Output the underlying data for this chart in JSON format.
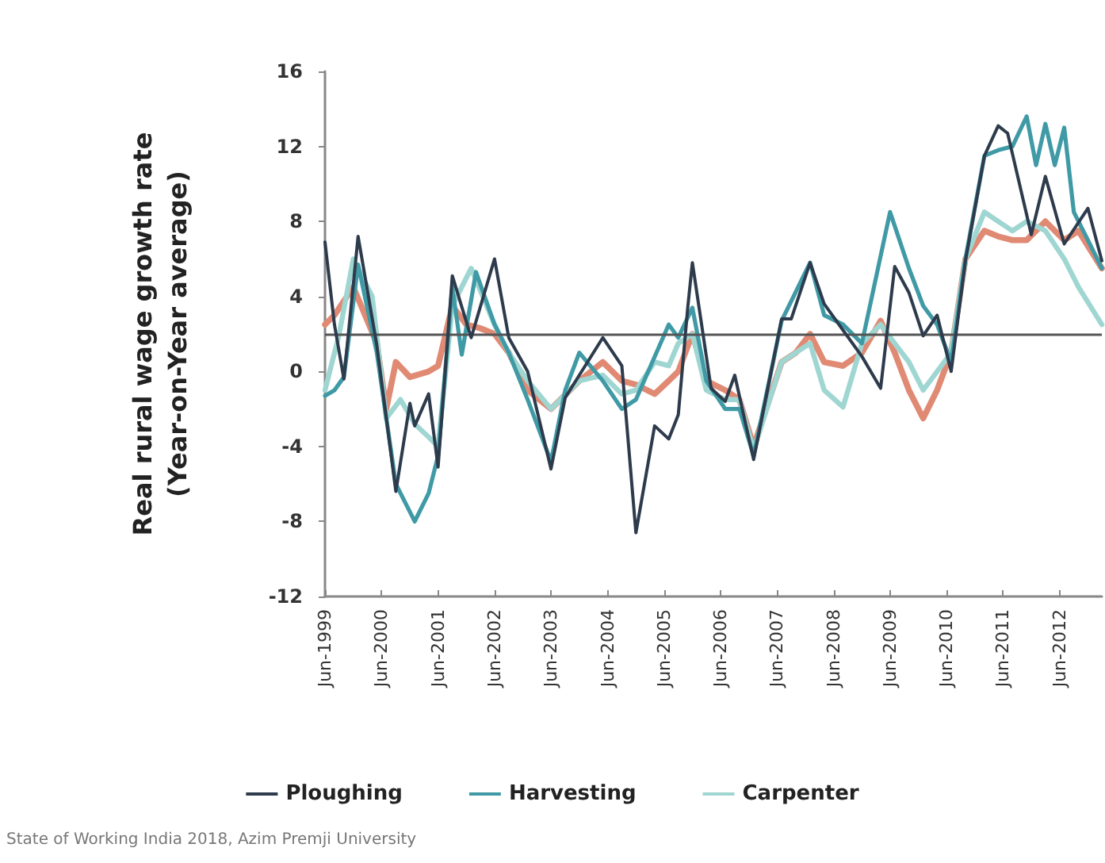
{
  "chart_data": {
    "type": "line",
    "ylabel": "Real rural wage growth rate\n(Year-on-Year average)",
    "annotations": [
      "State of Working India 2018, Azim Premji University"
    ],
    "xlim": [
      "1999-06",
      "2013-03"
    ],
    "xticks": [
      {
        "value": "1999-06",
        "label": "Jun-1999"
      },
      {
        "value": "2000-06",
        "label": "Jun-2000"
      },
      {
        "value": "2001-06",
        "label": "Jun-2001"
      },
      {
        "value": "2002-06",
        "label": "Jun-2002"
      },
      {
        "value": "2003-06",
        "label": "Jun-2003"
      },
      {
        "value": "2004-06",
        "label": "Jun-2004"
      },
      {
        "value": "2005-06",
        "label": "Jun-2005"
      },
      {
        "value": "2006-06",
        "label": "Jun-2006"
      },
      {
        "value": "2007-06",
        "label": "Jun-2007"
      },
      {
        "value": "2008-06",
        "label": "Jun-2008"
      },
      {
        "value": "2009-06",
        "label": "Jun-2009"
      },
      {
        "value": "2010-06",
        "label": "Jun-2010"
      },
      {
        "value": "2011-06",
        "label": "Jun-2011"
      },
      {
        "value": "2012-06",
        "label": "Jun-2012"
      }
    ],
    "ylim": [
      -12,
      16
    ],
    "yticks": [
      -12,
      -8,
      -4,
      0,
      4,
      8,
      12,
      16
    ],
    "grid": false,
    "legend": "bottom",
    "marker": "none",
    "line_style": "solid",
    "ref_lines": [
      {
        "axis": "y",
        "value": 2,
        "color": "#555555"
      }
    ],
    "series": [
      {
        "color": "#e08a74",
        "x": [
          "1999-06",
          "1999-08",
          "1999-12",
          "2000-05",
          "2000-07",
          "2000-09",
          "2000-12",
          "2001-04",
          "2001-06",
          "2001-09",
          "2001-12",
          "2002-03",
          "2002-06",
          "2002-09",
          "2003-01",
          "2003-06",
          "2003-12",
          "2004-05",
          "2004-09",
          "2004-12",
          "2005-04",
          "2005-07",
          "2005-09",
          "2005-12",
          "2006-03",
          "2006-07",
          "2006-10",
          "2007-01",
          "2007-07",
          "2007-10",
          "2008-01",
          "2008-04",
          "2008-08",
          "2008-12",
          "2009-04",
          "2009-07",
          "2009-10",
          "2010-01",
          "2010-04",
          "2010-07",
          "2010-10",
          "2011-02",
          "2011-05",
          "2011-08",
          "2011-11",
          "2012-03",
          "2012-07",
          "2012-10",
          "2013-03"
        ],
        "values": [
          2.5,
          3,
          4.5,
          1.5,
          -2,
          0.5,
          -0.3,
          0,
          0.3,
          3.5,
          2.5,
          2.3,
          2,
          1,
          -1,
          -2,
          -0.5,
          0.5,
          -0.5,
          -0.7,
          -1.2,
          -0.5,
          0,
          2,
          -0.5,
          -1,
          -1.5,
          -4,
          0.5,
          1,
          2,
          0.5,
          0.3,
          1,
          2.7,
          1,
          -1,
          -2.5,
          -1,
          1,
          6,
          7.5,
          7.2,
          7,
          7,
          8,
          7,
          7.5,
          5.5
        ]
      },
      {
        "name": "Carpenter",
        "color": "#9fd6d2",
        "x": [
          "1999-06",
          "1999-09",
          "1999-12",
          "2000-04",
          "2000-07",
          "2000-10",
          "2001-01",
          "2001-04",
          "2001-06",
          "2001-09",
          "2002-01",
          "2002-06",
          "2002-09",
          "2003-01",
          "2003-06",
          "2003-12",
          "2004-05",
          "2004-09",
          "2004-12",
          "2005-04",
          "2005-07",
          "2005-09",
          "2005-12",
          "2006-03",
          "2006-07",
          "2006-10",
          "2007-01",
          "2007-07",
          "2007-10",
          "2008-01",
          "2008-04",
          "2008-08",
          "2008-12",
          "2009-04",
          "2009-07",
          "2009-10",
          "2010-01",
          "2010-07",
          "2010-10",
          "2011-02",
          "2011-05",
          "2011-08",
          "2011-11",
          "2012-03",
          "2012-07",
          "2012-10",
          "2013-03"
        ],
        "values": [
          -1,
          2,
          6,
          4,
          -2.5,
          -1.5,
          -2.8,
          -3.5,
          -4,
          3.5,
          5.5,
          2.5,
          1,
          -0.5,
          -2,
          -0.5,
          -0.2,
          -1.2,
          -1,
          0.5,
          0.3,
          1.5,
          2,
          -1,
          -1.5,
          -1.5,
          -4.2,
          0.5,
          1,
          1.5,
          -1,
          -1.9,
          1.5,
          2.5,
          1.5,
          0.5,
          -1,
          1,
          6,
          8.5,
          8,
          7.5,
          8,
          7.5,
          6,
          4.5,
          2.5
        ]
      },
      {
        "name": "Harvesting",
        "color": "#3f9aa6",
        "x": [
          "1999-06",
          "1999-08",
          "1999-10",
          "2000-01",
          "2000-05",
          "2000-09",
          "2001-01",
          "2001-04",
          "2001-06",
          "2001-09",
          "2001-11",
          "2002-02",
          "2002-06",
          "2002-09",
          "2003-01",
          "2003-06",
          "2003-09",
          "2003-12",
          "2004-05",
          "2004-09",
          "2004-12",
          "2005-07",
          "2005-09",
          "2005-12",
          "2006-03",
          "2006-07",
          "2006-10",
          "2007-01",
          "2007-07",
          "2008-01",
          "2008-04",
          "2008-08",
          "2008-12",
          "2009-06",
          "2009-10",
          "2010-01",
          "2010-04",
          "2010-07",
          "2010-10",
          "2011-02",
          "2011-05",
          "2011-08",
          "2011-11",
          "2012-01",
          "2012-03",
          "2012-05",
          "2012-07",
          "2012-09",
          "2012-12",
          "2013-03"
        ],
        "values": [
          -1.3,
          -1,
          -0.3,
          5.7,
          1,
          -6,
          -8,
          -6.5,
          -4.5,
          4.5,
          0.9,
          5.3,
          2.5,
          1,
          -1.5,
          -4.8,
          -1,
          1,
          -0.5,
          -2,
          -1.5,
          2.5,
          1.8,
          3.4,
          -0.5,
          -2,
          -2,
          -4.5,
          2.7,
          5.8,
          3,
          2.5,
          1.5,
          8.5,
          5.5,
          3.5,
          2.5,
          0.5,
          6,
          11.5,
          11.8,
          12,
          13.6,
          11,
          13.2,
          11,
          13,
          8.5,
          7,
          5.5
        ]
      },
      {
        "name": "Ploughing",
        "color": "#2d3b4c",
        "x": [
          "1999-06",
          "1999-08",
          "1999-10",
          "2000-01",
          "2000-05",
          "2000-09",
          "2000-12",
          "2001-01",
          "2001-04",
          "2001-06",
          "2001-09",
          "2002-01",
          "2002-06",
          "2002-09",
          "2003-01",
          "2003-06",
          "2003-09",
          "2003-12",
          "2004-05",
          "2004-09",
          "2004-12",
          "2005-04",
          "2005-07",
          "2005-09",
          "2005-11",
          "2005-12",
          "2006-04",
          "2006-07",
          "2006-09",
          "2007-01",
          "2007-07",
          "2007-09",
          "2008-01",
          "2008-04",
          "2008-08",
          "2008-12",
          "2009-04",
          "2009-07",
          "2009-10",
          "2010-01",
          "2010-04",
          "2010-07",
          "2010-10",
          "2011-02",
          "2011-05",
          "2011-07",
          "2011-12",
          "2012-03",
          "2012-07",
          "2012-12",
          "2013-03"
        ],
        "values": [
          6.9,
          2.5,
          -0.4,
          7.2,
          1.4,
          -6.4,
          -1.7,
          -2.9,
          -1.2,
          -5.1,
          5.1,
          1.8,
          6,
          1.8,
          0,
          -5.2,
          -1.4,
          -0.2,
          1.8,
          0.3,
          -8.6,
          -2.9,
          -3.6,
          -2.3,
          3.4,
          5.8,
          -0.9,
          -1.6,
          -0.2,
          -4.7,
          2.8,
          2.8,
          5.8,
          3.6,
          2.2,
          0.8,
          -0.9,
          5.6,
          4.2,
          1.9,
          3,
          0,
          5.9,
          11.5,
          13.1,
          12.7,
          7.3,
          10.4,
          6.8,
          8.7,
          5.9
        ]
      }
    ]
  }
}
